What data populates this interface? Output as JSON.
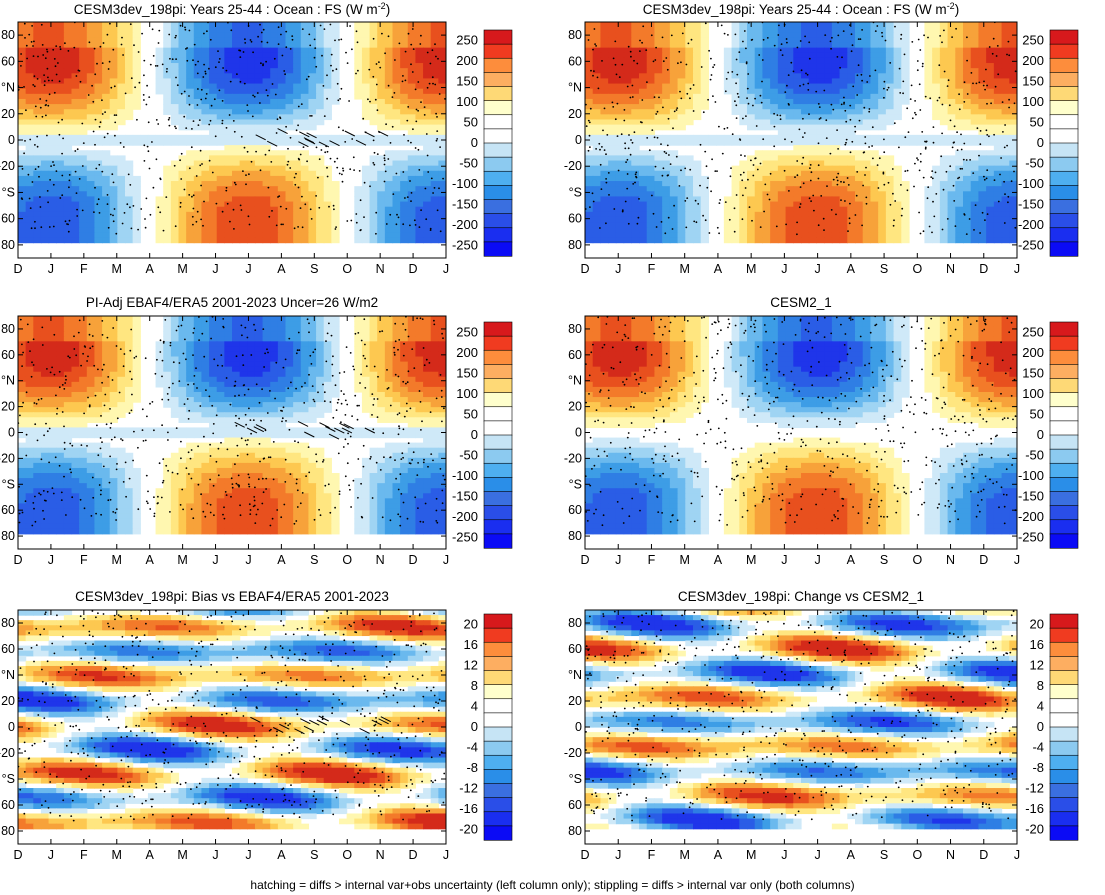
{
  "footer": "hatching = diffs > internal var+obs uncertainty (left column only); stippling = diffs > internal var only (both columns)",
  "chart_data": [
    {
      "type": "heatmap",
      "title": "CESM3dev_198pi: Years 25-44 : Ocean : FS (W m-2)",
      "title_main": "CESM3dev_198pi: Years 25-44 : Ocean : FS (W m",
      "title_sup": "-2",
      "title_tail": ")",
      "x_ticks": [
        "D",
        "J",
        "F",
        "M",
        "A",
        "M",
        "J",
        "J",
        "A",
        "S",
        "O",
        "N",
        "D",
        "J"
      ],
      "y_ticks": [
        "80",
        "60",
        "°N",
        "20",
        "0",
        "-20",
        "°S",
        "60",
        "80"
      ],
      "ylim": [
        -90,
        90
      ],
      "colorbar_levels": [
        "250",
        "200",
        "150",
        "100",
        "50",
        "0",
        "-50",
        "-100",
        "-150",
        "-200",
        "-250"
      ],
      "hatching": true,
      "stippling": true
    },
    {
      "type": "heatmap",
      "title": "CESM3dev_198pi: Years 25-44 : Ocean : FS (W m-2)",
      "title_main": "CESM3dev_198pi: Years 25-44 : Ocean : FS (W m",
      "title_sup": "-2",
      "title_tail": ")",
      "x_ticks": [
        "D",
        "J",
        "F",
        "M",
        "A",
        "M",
        "J",
        "J",
        "A",
        "S",
        "O",
        "N",
        "D",
        "J"
      ],
      "y_ticks": [
        "80",
        "60",
        "°N",
        "20",
        "0",
        "-20",
        "°S",
        "60",
        "80"
      ],
      "ylim": [
        -90,
        90
      ],
      "colorbar_levels": [
        "250",
        "200",
        "150",
        "100",
        "50",
        "0",
        "-50",
        "-100",
        "-150",
        "-200",
        "-250"
      ],
      "hatching": false,
      "stippling": true
    },
    {
      "type": "heatmap",
      "title": "PI-Adj EBAF4/ERA5 2001-2023 Uncer=26 W/m2",
      "title_main": "PI-Adj EBAF4/ERA5 2001-2023 Uncer=26 W/m2",
      "title_sup": "",
      "title_tail": "",
      "x_ticks": [
        "D",
        "J",
        "F",
        "M",
        "A",
        "M",
        "J",
        "J",
        "A",
        "S",
        "O",
        "N",
        "D",
        "J"
      ],
      "y_ticks": [
        "80",
        "60",
        "°N",
        "20",
        "0",
        "-20",
        "°S",
        "60",
        "80"
      ],
      "ylim": [
        -90,
        90
      ],
      "colorbar_levels": [
        "250",
        "200",
        "150",
        "100",
        "50",
        "0",
        "-50",
        "-100",
        "-150",
        "-200",
        "-250"
      ],
      "hatching": true,
      "stippling": true
    },
    {
      "type": "heatmap",
      "title": "CESM2_1",
      "title_main": "CESM2_1",
      "title_sup": "",
      "title_tail": "",
      "x_ticks": [
        "D",
        "J",
        "F",
        "M",
        "A",
        "M",
        "J",
        "J",
        "A",
        "S",
        "O",
        "N",
        "D",
        "J"
      ],
      "y_ticks": [
        "80",
        "60",
        "°N",
        "20",
        "0",
        "-20",
        "°S",
        "60",
        "80"
      ],
      "ylim": [
        -90,
        90
      ],
      "colorbar_levels": [
        "250",
        "200",
        "150",
        "100",
        "50",
        "0",
        "-50",
        "-100",
        "-150",
        "-200",
        "-250"
      ],
      "hatching": false,
      "stippling": true
    },
    {
      "type": "heatmap",
      "title": "CESM3dev_198pi: Bias vs EBAF4/ERA5 2001-2023",
      "title_main": "CESM3dev_198pi: Bias vs EBAF4/ERA5 2001-2023",
      "title_sup": "",
      "title_tail": "",
      "x_ticks": [
        "D",
        "J",
        "F",
        "M",
        "A",
        "M",
        "J",
        "J",
        "A",
        "S",
        "O",
        "N",
        "D",
        "J"
      ],
      "y_ticks": [
        "80",
        "60",
        "°N",
        "20",
        "0",
        "-20",
        "°S",
        "60",
        "80"
      ],
      "ylim": [
        -90,
        90
      ],
      "colorbar_levels": [
        "20",
        "16",
        "12",
        "8",
        "4",
        "0",
        "-4",
        "-8",
        "-12",
        "-16",
        "-20"
      ],
      "hatching": true,
      "stippling": true
    },
    {
      "type": "heatmap",
      "title": "CESM3dev_198pi: Change vs CESM2_1",
      "title_main": "CESM3dev_198pi: Change vs CESM2_1",
      "title_sup": "",
      "title_tail": "",
      "x_ticks": [
        "D",
        "J",
        "F",
        "M",
        "A",
        "M",
        "J",
        "J",
        "A",
        "S",
        "O",
        "N",
        "D",
        "J"
      ],
      "y_ticks": [
        "80",
        "60",
        "°N",
        "20",
        "0",
        "-20",
        "°S",
        "60",
        "80"
      ],
      "ylim": [
        -90,
        90
      ],
      "colorbar_levels": [
        "20",
        "16",
        "12",
        "8",
        "4",
        "0",
        "-4",
        "-8",
        "-12",
        "-16",
        "-20"
      ],
      "hatching": false,
      "stippling": true
    }
  ],
  "colorbar_colors": [
    "#d7191c",
    "#f03b20",
    "#fd8d3c",
    "#fdae61",
    "#fed976",
    "#ffffcc",
    "#ffffff",
    "#ffffff",
    "#c6e4f5",
    "#8ccaf0",
    "#4eaff0",
    "#2a8ee8",
    "#3a6fe0",
    "#2a4ee8",
    "#1a2ef0",
    "#0b0bf5"
  ],
  "map_colors": {
    "warm": [
      "#fff7b0",
      "#ffe680",
      "#fdc850",
      "#f7a23a",
      "#f37a2a",
      "#e8501e",
      "#d42a1a"
    ],
    "cool": [
      "#cfe9f8",
      "#9fd4f3",
      "#6ab9ee",
      "#3d9de6",
      "#2f7ee4",
      "#2a5de6",
      "#1f35ea"
    ]
  }
}
